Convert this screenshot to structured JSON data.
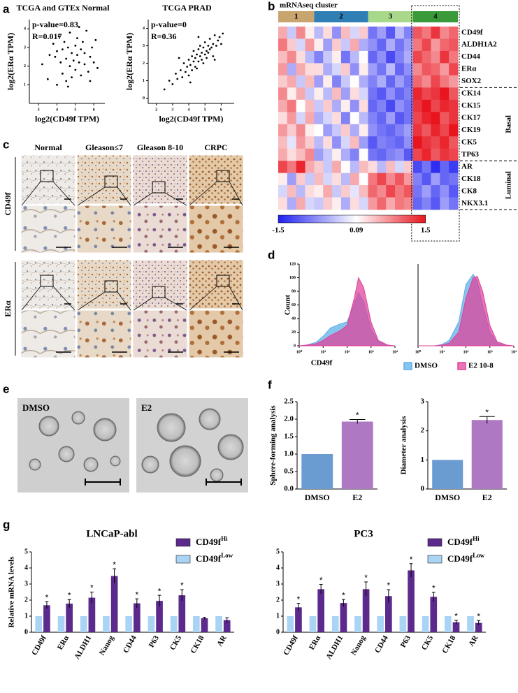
{
  "chart_data": [
    {
      "type": "scatter",
      "title": "TCGA and GTEx Normal",
      "annotations": [
        "p-value=0.83",
        "R=0.017"
      ],
      "xlabel": "log2(CD49f TPM)",
      "ylabel": "log2(ERα TPM)",
      "color": "#000000",
      "xlim": [
        2.5,
        6.6
      ],
      "xticks": [
        3,
        4,
        5,
        6
      ],
      "ylim": [
        0,
        4.5
      ],
      "yticks": [
        1,
        2,
        3,
        4
      ],
      "x": [
        3.2,
        3.5,
        3.8,
        3.9,
        4.0,
        4.1,
        4.2,
        4.3,
        4.3,
        4.4,
        4.5,
        4.5,
        4.6,
        4.7,
        4.7,
        4.8,
        4.8,
        4.9,
        5.0,
        5.0,
        5.1,
        5.1,
        5.2,
        5.3,
        5.3,
        5.4,
        5.5,
        5.5,
        5.6,
        5.7,
        5.8,
        5.9,
        6.0,
        6.1,
        6.2,
        4.0,
        4.6,
        5.2,
        3.6,
        5.8
      ],
      "values": [
        2.1,
        1.3,
        3.2,
        2.5,
        1.0,
        3.6,
        2.2,
        2.9,
        1.6,
        3.3,
        2.4,
        1.2,
        3.0,
        2.0,
        3.8,
        2.7,
        1.4,
        2.3,
        3.1,
        1.8,
        2.6,
        3.5,
        2.2,
        1.5,
        2.9,
        3.3,
        2.1,
        2.7,
        3.9,
        1.7,
        2.5,
        3.0,
        2.2,
        3.4,
        1.9,
        2.8,
        0.9,
        4.1,
        2.6,
        1.2
      ]
    },
    {
      "type": "scatter",
      "title": "TCGA PRAD",
      "annotations": [
        "p-value=0",
        "R=0.36"
      ],
      "xlabel": "log2(CD49f TPM)",
      "ylabel": "log2(ERα TPM)",
      "color": "#000000",
      "xlim": [
        1.5,
        6.8
      ],
      "xticks": [
        2,
        3,
        4,
        5,
        6
      ],
      "ylim": [
        -0.3,
        4.5
      ],
      "yticks": [
        0,
        1,
        2,
        3,
        4
      ],
      "x": [
        2.5,
        2.8,
        3.0,
        3.2,
        3.3,
        3.5,
        3.6,
        3.7,
        3.8,
        3.9,
        4.0,
        4.0,
        4.1,
        4.2,
        4.2,
        4.3,
        4.3,
        4.4,
        4.4,
        4.5,
        4.5,
        4.6,
        4.6,
        4.7,
        4.7,
        4.8,
        4.8,
        4.9,
        4.9,
        5.0,
        5.0,
        5.1,
        5.1,
        5.2,
        5.2,
        5.3,
        5.3,
        5.4,
        5.5,
        5.5,
        5.6,
        5.7,
        5.8,
        5.9,
        6.0,
        6.1,
        3.4,
        4.1,
        4.6,
        5.6
      ],
      "values": [
        0.5,
        1.0,
        0.8,
        1.4,
        1.1,
        1.6,
        1.2,
        2.0,
        1.5,
        1.8,
        2.2,
        1.3,
        1.9,
        2.4,
        1.6,
        2.1,
        2.7,
        1.8,
        2.3,
        2.5,
        1.7,
        2.8,
        2.1,
        2.4,
        3.0,
        2.2,
        2.6,
        2.9,
        2.0,
        2.5,
        3.2,
        2.7,
        2.3,
        3.0,
        2.6,
        2.8,
        3.4,
        2.9,
        3.1,
        2.4,
        3.6,
        3.0,
        3.3,
        3.5,
        3.1,
        3.7,
        2.3,
        0.9,
        3.5,
        2.2
      ]
    },
    {
      "type": "heatmap",
      "title": "mRNAseq cluster",
      "zlim": [
        -1.5,
        1.5
      ],
      "zticks": [
        -1.5,
        0.09,
        1.5
      ],
      "colors": [
        "#2020f0",
        "#ffffff",
        "#e8141e"
      ],
      "row_groups": [
        {
          "label": null,
          "rows": [
            "CD49f",
            "ALDH1A2",
            "CD44",
            "ERα",
            "SOX2"
          ]
        },
        {
          "label": "Basal",
          "rows": [
            "CK14",
            "CK15",
            "CK17",
            "CK19",
            "CK5",
            "TP63"
          ]
        },
        {
          "label": "Luminal",
          "rows": [
            "AR",
            "CK18",
            "CK8",
            "NKX3.1"
          ]
        }
      ],
      "clusters": [
        {
          "label": "1",
          "color": "#c8a46e",
          "z": [
            [
              0.6,
              -0.3,
              0.8,
              0.2
            ],
            [
              0.9,
              0.4,
              -0.2,
              0.7
            ],
            [
              0.5,
              0.8,
              0.3,
              -0.4
            ],
            [
              0.7,
              -0.5,
              0.6,
              0.3
            ],
            [
              0.4,
              0.6,
              -0.3,
              0.5
            ],
            [
              0.8,
              0.2,
              0.6,
              -0.3
            ],
            [
              0.6,
              0.9,
              0.1,
              0.5
            ],
            [
              0.3,
              0.7,
              -0.2,
              0.6
            ],
            [
              0.7,
              0.4,
              0.8,
              0.2
            ],
            [
              0.5,
              -0.1,
              0.7,
              0.4
            ],
            [
              0.6,
              0.3,
              0.5,
              0.8
            ],
            [
              1.2,
              0.9,
              1.4,
              0.6
            ],
            [
              0.2,
              -0.6,
              0.4,
              -0.3
            ],
            [
              -0.2,
              0.5,
              -0.4,
              0.3
            ],
            [
              0.3,
              -0.5,
              0.6,
              -0.2
            ]
          ]
        },
        {
          "label": "2",
          "color": "#2f7fb5",
          "z": [
            [
              -0.4,
              0.3,
              -0.7,
              0.5,
              -0.2,
              0.4
            ],
            [
              0.2,
              -0.6,
              0.4,
              -0.3,
              0.6,
              -0.5
            ],
            [
              -0.8,
              -0.3,
              0.2,
              -0.9,
              -0.4,
              0.1
            ],
            [
              0.3,
              -0.5,
              -0.2,
              0.4,
              -0.7,
              0.2
            ],
            [
              -0.6,
              0.2,
              -0.8,
              -0.3,
              0.1,
              -0.5
            ],
            [
              0.2,
              -0.4,
              0.5,
              -0.6,
              0.3,
              -0.2
            ],
            [
              -0.3,
              0.4,
              -0.5,
              0.2,
              -0.7,
              0.3
            ],
            [
              -0.5,
              -0.2,
              0.3,
              -0.8,
              0.1,
              -0.4
            ],
            [
              0.1,
              -0.6,
              -0.3,
              0.4,
              -0.5,
              0.2
            ],
            [
              -0.4,
              0.3,
              -0.7,
              -0.2,
              0.5,
              -0.6
            ],
            [
              -0.6,
              -0.3,
              0.2,
              -0.5,
              -0.8,
              0.1
            ],
            [
              0.4,
              -0.3,
              0.6,
              0.1,
              -0.4,
              0.5
            ],
            [
              0.5,
              -0.2,
              0.3,
              -0.4,
              0.6,
              0.1
            ],
            [
              0.2,
              0.6,
              -0.3,
              0.4,
              -0.1,
              0.5
            ],
            [
              -0.3,
              0.4,
              0.2,
              -0.5,
              0.3,
              -0.2
            ]
          ]
        },
        {
          "label": "3",
          "color": "#a8d88a",
          "z": [
            [
              -0.9,
              -0.6,
              -1.1,
              -0.4,
              -0.8
            ],
            [
              -0.7,
              -1.0,
              -0.5,
              -0.9,
              -0.6
            ],
            [
              -1.0,
              -0.7,
              -1.2,
              -0.8,
              -0.5
            ],
            [
              -0.6,
              -0.9,
              -0.4,
              -1.0,
              -0.7
            ],
            [
              -0.8,
              -0.5,
              -1.0,
              -0.6,
              -0.9
            ],
            [
              -0.9,
              -1.1,
              -0.7,
              -1.0,
              -0.8
            ],
            [
              -1.0,
              -0.8,
              -1.2,
              -0.7,
              -0.9
            ],
            [
              -0.8,
              -1.0,
              -0.6,
              -1.1,
              -0.9
            ],
            [
              -0.7,
              -0.9,
              -1.0,
              -0.8,
              -0.6
            ],
            [
              -1.1,
              -0.8,
              -0.9,
              -1.0,
              -0.7
            ],
            [
              -0.9,
              -1.0,
              -0.8,
              -0.7,
              -1.1
            ],
            [
              0.3,
              -0.4,
              0.5,
              -0.2,
              0.4
            ],
            [
              0.9,
              1.2,
              0.8,
              1.1,
              0.7
            ],
            [
              1.0,
              0.8,
              1.2,
              0.9,
              1.1
            ],
            [
              0.7,
              1.0,
              0.6,
              0.9,
              0.8
            ]
          ]
        },
        {
          "label": "4",
          "color": "#3a9a3a",
          "z": [
            [
              1.1,
              0.9,
              1.3,
              0.8,
              1.0
            ],
            [
              0.9,
              1.2,
              0.7,
              1.0,
              1.1
            ],
            [
              1.2,
              1.0,
              0.8,
              1.3,
              0.9
            ],
            [
              0.8,
              1.1,
              1.0,
              0.7,
              1.2
            ],
            [
              1.0,
              0.8,
              1.2,
              0.9,
              0.7
            ],
            [
              1.4,
              1.2,
              1.3,
              1.5,
              1.1
            ],
            [
              1.3,
              1.5,
              1.2,
              1.4,
              1.3
            ],
            [
              1.2,
              1.4,
              1.5,
              1.1,
              1.3
            ],
            [
              1.3,
              1.1,
              1.4,
              1.2,
              1.5
            ],
            [
              1.5,
              1.3,
              1.2,
              1.4,
              1.1
            ],
            [
              1.2,
              1.4,
              1.1,
              1.3,
              1.2
            ],
            [
              -1.2,
              -0.9,
              -1.4,
              -1.0,
              -1.3
            ],
            [
              -0.8,
              -1.1,
              -0.6,
              -1.0,
              -0.9
            ],
            [
              -0.9,
              -0.6,
              -1.0,
              -0.7,
              -1.1
            ],
            [
              -1.0,
              -0.8,
              -1.1,
              -0.6,
              -0.9
            ]
          ]
        }
      ]
    },
    {
      "type": "area",
      "xscale": "log",
      "xlabel": "CD49f",
      "ylabel": "Count",
      "x": [
        1,
        2,
        5,
        10,
        20,
        50,
        100,
        200,
        300,
        500,
        1000,
        2000,
        5000,
        10000
      ],
      "xlim": [
        1,
        10000
      ],
      "xticks": [
        {
          "value": 1,
          "label": "10⁰"
        },
        {
          "value": 10,
          "label": "10¹"
        },
        {
          "value": 100,
          "label": "10²"
        },
        {
          "value": 1000,
          "label": "10³"
        },
        {
          "value": 10000,
          "label": "10⁴"
        }
      ],
      "ylim": [
        0,
        120
      ],
      "yticks": [
        0,
        20,
        40,
        60,
        80,
        100,
        120
      ],
      "series": [
        {
          "name": "DMSO",
          "color": "#5aaee8",
          "values": [
            0,
            1,
            5,
            14,
            26,
            32,
            35,
            62,
            78,
            65,
            25,
            6,
            1,
            0
          ]
        },
        {
          "name": "E2 10-8",
          "color": "#e0409a",
          "values": [
            0,
            1,
            3,
            8,
            15,
            22,
            30,
            70,
            100,
            85,
            35,
            8,
            1,
            0
          ]
        }
      ]
    },
    {
      "type": "area",
      "xscale": "log",
      "x": [
        1,
        2,
        5,
        10,
        20,
        50,
        100,
        200,
        300,
        500,
        1000,
        2000,
        5000,
        10000
      ],
      "xlim": [
        1,
        10000
      ],
      "xticks": [
        {
          "value": 1,
          "label": "10⁰"
        },
        {
          "value": 10,
          "label": "10¹"
        },
        {
          "value": 100,
          "label": "10²"
        },
        {
          "value": 1000,
          "label": "10³"
        },
        {
          "value": 10000,
          "label": "10⁴"
        }
      ],
      "ylim": [
        0,
        120
      ],
      "series": [
        {
          "color": "#5aaee8",
          "values": [
            0,
            0,
            0,
            2,
            8,
            35,
            90,
            105,
            95,
            60,
            20,
            4,
            0,
            0
          ]
        },
        {
          "color": "#e0409a",
          "values": [
            0,
            0,
            0,
            1,
            4,
            20,
            70,
            100,
            102,
            80,
            30,
            6,
            1,
            0
          ]
        }
      ]
    },
    {
      "type": "bar",
      "ylabel": "Sphere-forming analysis",
      "categories": [
        "DMSO",
        "E2"
      ],
      "values": [
        1,
        1.93
      ],
      "errors": [
        null,
        0.06
      ],
      "significance": [
        null,
        "*"
      ],
      "colors": [
        "#6a9bd1",
        "#ae78c2"
      ],
      "ylim": [
        0,
        2.5
      ],
      "yticks": [
        {
          "value": 0,
          "label": "0.0"
        },
        0.5,
        {
          "value": 1,
          "label": "1.0"
        },
        1.5,
        {
          "value": 2,
          "label": "2.0"
        },
        2.5
      ]
    },
    {
      "type": "bar",
      "ylabel": "Diameter analysis",
      "categories": [
        "DMSO",
        "E2"
      ],
      "values": [
        1,
        2.37
      ],
      "errors": [
        null,
        0.12
      ],
      "significance": [
        null,
        "*"
      ],
      "colors": [
        "#6a9bd1",
        "#ae78c2"
      ],
      "ylim": [
        0,
        3
      ],
      "yticks": [
        0,
        1,
        2,
        3
      ]
    },
    {
      "type": "bar",
      "title": "LNCaP-abl",
      "ylabel": "Relative mRNA levels",
      "categories": [
        "CD49f",
        "ERα",
        "ALDH1",
        "Nanog",
        "CD44",
        "P63",
        "CK5",
        "CK18",
        "AR"
      ],
      "ylim": [
        0,
        5
      ],
      "yticks": [
        0,
        1,
        2,
        3,
        4,
        5
      ],
      "series": [
        {
          "name": "CD49f",
          "name_sup": "Hi",
          "color": "#5b2a8c",
          "values": [
            1.68,
            1.78,
            2.15,
            3.5,
            1.8,
            1.95,
            2.3,
            0.87,
            0.75
          ],
          "errors": [
            0.22,
            0.25,
            0.35,
            0.45,
            0.28,
            0.35,
            0.35,
            0.06,
            0.15
          ],
          "significance": [
            "*",
            "*",
            "*",
            "*",
            "*",
            "*",
            "*",
            null,
            null
          ]
        },
        {
          "name": "CD49f",
          "name_sup": "Low",
          "color": "#a9d4f4",
          "values": [
            1,
            1,
            1,
            1,
            1,
            1,
            1,
            1,
            1
          ]
        }
      ]
    },
    {
      "type": "bar",
      "title": "PC3",
      "categories": [
        "CD49f",
        "ERα",
        "ALDH1",
        "Nanog",
        "CD44",
        "P63",
        "CK5",
        "CK18",
        "AR"
      ],
      "ylim": [
        0,
        5
      ],
      "yticks": [
        0,
        1,
        2,
        3,
        4,
        5
      ],
      "series": [
        {
          "name": "CD49f",
          "name_sup": "Hi",
          "color": "#5b2a8c",
          "values": [
            1.55,
            2.68,
            1.82,
            2.68,
            2.25,
            3.85,
            2.2,
            0.62,
            0.58
          ],
          "errors": [
            0.25,
            0.3,
            0.22,
            0.45,
            0.4,
            0.42,
            0.28,
            0.12,
            0.15
          ],
          "significance": [
            "*",
            "*",
            "*",
            "*",
            "*",
            "*",
            "*",
            "*",
            "*"
          ]
        },
        {
          "name": "CD49f",
          "name_sup": "Low",
          "color": "#a9d4f4",
          "values": [
            1,
            1,
            1,
            1,
            1,
            1,
            1,
            1,
            1
          ]
        }
      ]
    }
  ],
  "figure": {
    "panel_labels": [
      "a",
      "b",
      "c",
      "d",
      "e",
      "f",
      "g"
    ],
    "ihc": {
      "columns": [
        "Normal",
        "Gleason≤7",
        "Gleason 8-10",
        "CRPC"
      ],
      "rows": [
        "CD49f",
        "ERα"
      ]
    },
    "spheres": {
      "labels": [
        "DMSO",
        "E2"
      ]
    }
  }
}
